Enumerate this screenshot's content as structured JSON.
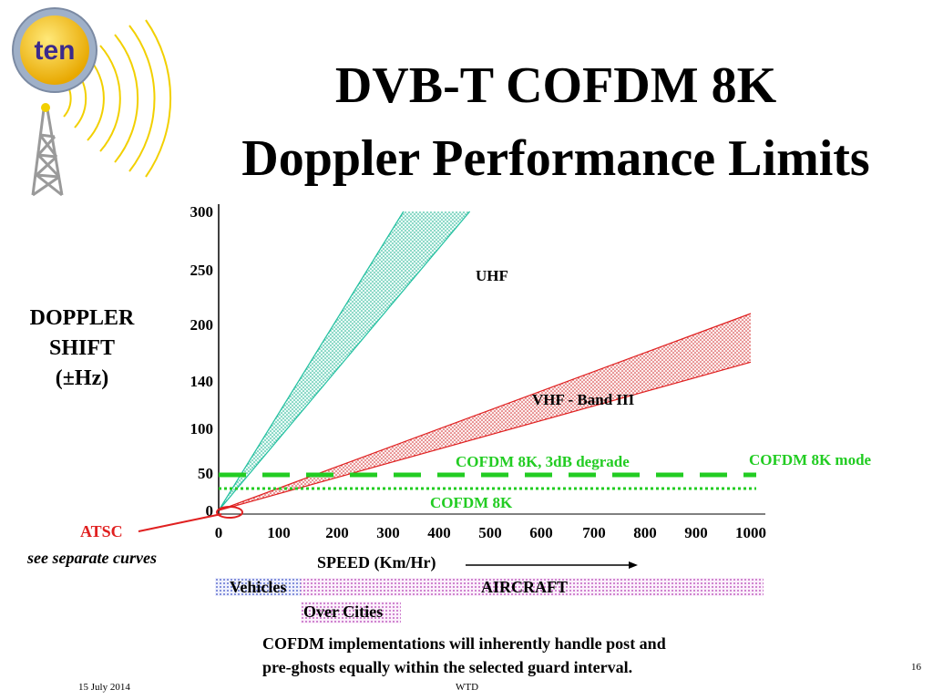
{
  "logo": {
    "text": "ten"
  },
  "title": {
    "line1": "DVB-T COFDM 8K",
    "line2": "Doppler Performance Limits"
  },
  "y_axis_label": {
    "line1": "DOPPLER",
    "line2": "SHIFT",
    "line3": "(±Hz)"
  },
  "atsc": {
    "label": "ATSC",
    "note": "see separate curves"
  },
  "speed_label": "SPEED (Km/Hr)",
  "bands": {
    "vehicles": "Vehicles",
    "aircraft": "AIRCRAFT",
    "over_cities": "Over Cities"
  },
  "note": {
    "line1": "COFDM implementations will inherently handle post and",
    "line2": "pre-ghosts equally within the selected guard interval."
  },
  "footer": {
    "date": "15 July 2014",
    "center": "WTD",
    "page": "16"
  },
  "chart_data": {
    "type": "area",
    "xlabel": "SPEED (Km/Hr)",
    "ylabel": "DOPPLER SHIFT (±Hz)",
    "x_ticks": [
      0,
      100,
      200,
      300,
      400,
      500,
      600,
      700,
      800,
      900,
      1000
    ],
    "y_ticks": [
      0,
      50,
      100,
      140,
      200,
      250,
      300
    ],
    "xlim": [
      0,
      1000
    ],
    "ylim": [
      0,
      300
    ],
    "series": [
      {
        "name": "UHF",
        "lower": [
          [
            0,
            0
          ],
          [
            460,
            300
          ]
        ],
        "upper": [
          [
            0,
            0
          ],
          [
            330,
            300
          ]
        ],
        "color": "#20c0a0"
      },
      {
        "name": "VHF - Band III",
        "lower": [
          [
            0,
            0
          ],
          [
            1000,
            160
          ]
        ],
        "upper": [
          [
            0,
            0
          ],
          [
            1000,
            210
          ]
        ],
        "color": "#e02020"
      }
    ],
    "thresholds": [
      {
        "name": "COFDM  8K mode",
        "y": 40,
        "style": "dashed",
        "color": "#22cc22"
      },
      {
        "name": "COFDM 8K, 3dB degrade",
        "y": 40,
        "style": "dashed",
        "color": "#22cc22"
      },
      {
        "name": "COFDM 8K",
        "y": 25,
        "style": "dotted",
        "color": "#22cc22"
      }
    ],
    "colors": {
      "accent_green": "#22cc22",
      "atsc_red": "#e02020",
      "band_purple": "#b04ab8"
    }
  }
}
